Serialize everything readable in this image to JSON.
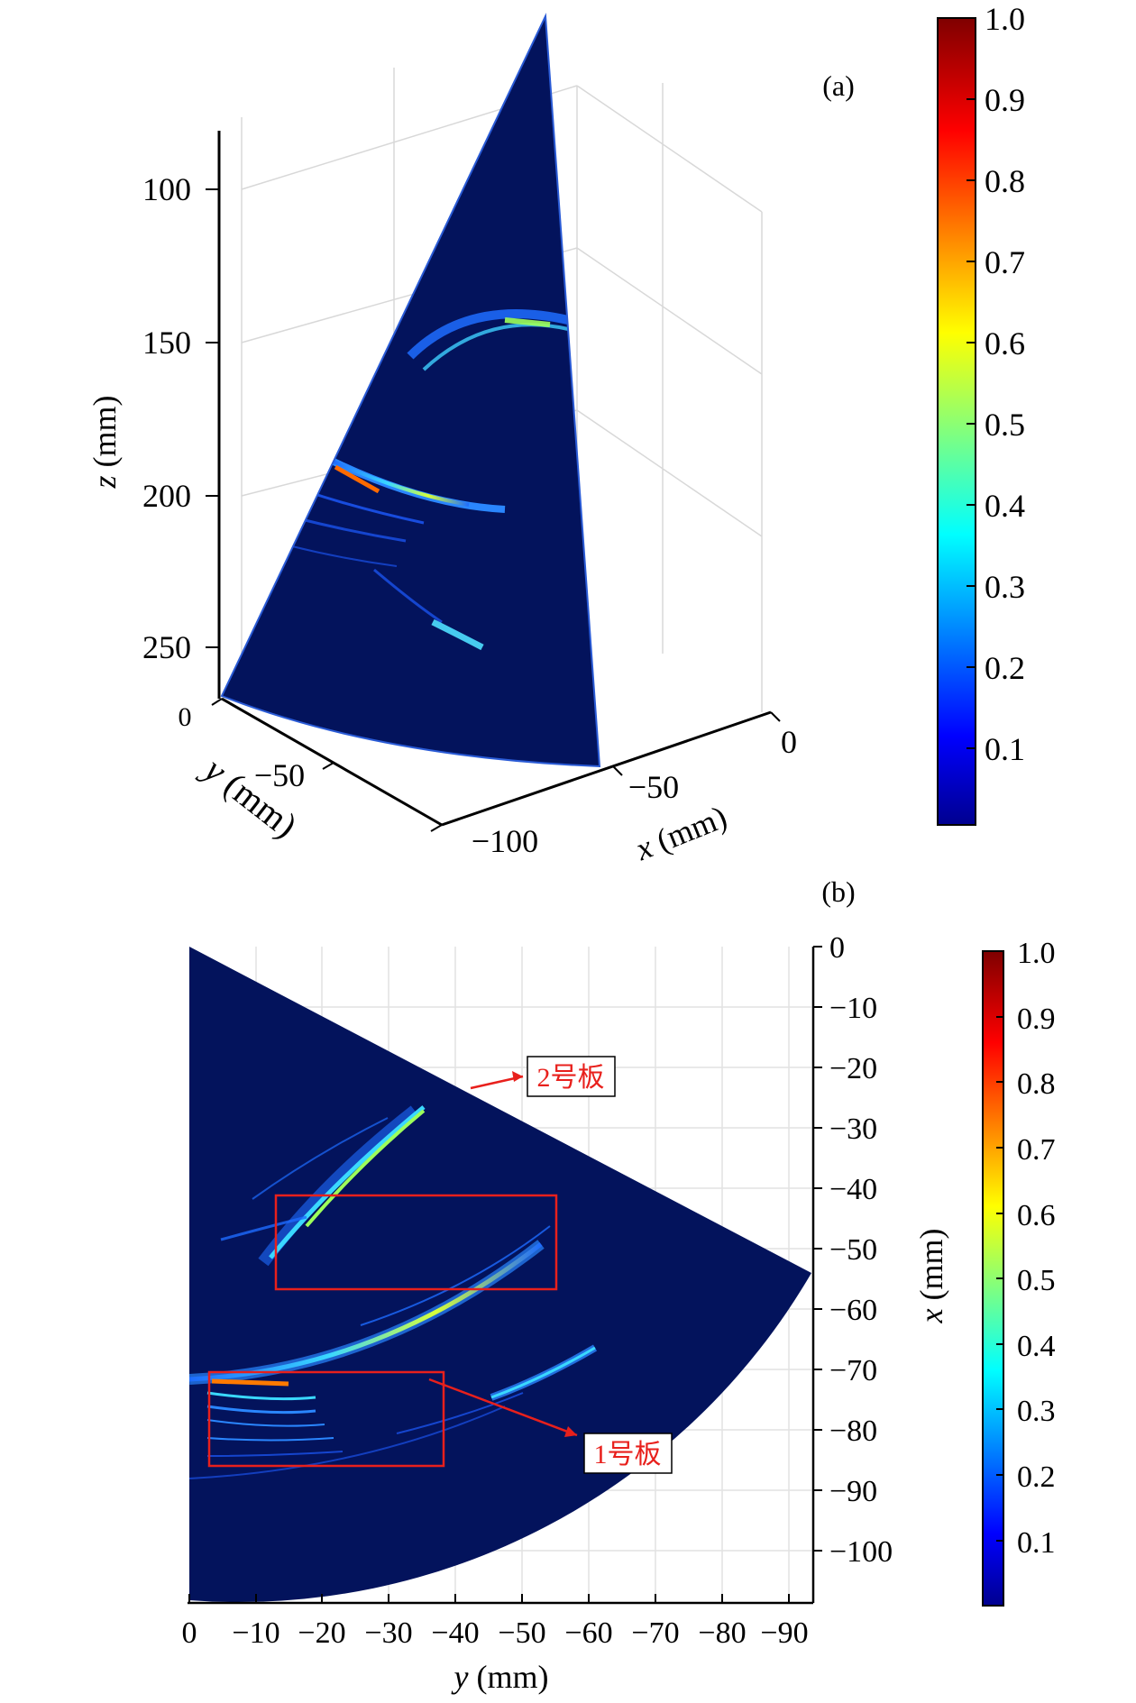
{
  "panel_a": {
    "label": "(a)",
    "z_axis": {
      "label_var": "z",
      "label_unit": " (mm)",
      "ticks": [
        "100",
        "150",
        "200",
        "250"
      ]
    },
    "y_axis": {
      "label_var": "y",
      "label_unit": " (mm)",
      "ticks": [
        "0",
        "−50",
        "−100"
      ]
    },
    "x_axis": {
      "label_var": "x",
      "label_unit": " (mm)",
      "ticks": [
        "0",
        "−50"
      ]
    },
    "colorbar_ticks": [
      "1.0",
      "0.9",
      "0.8",
      "0.7",
      "0.6",
      "0.5",
      "0.4",
      "0.3",
      "0.2",
      "0.1"
    ]
  },
  "panel_b": {
    "label": "(b)",
    "x_axis": {
      "label_var": "y",
      "label_unit": " (mm)",
      "ticks": [
        "0",
        "−10",
        "−20",
        "−30",
        "−40",
        "−50",
        "−60",
        "−70",
        "−80",
        "−90"
      ]
    },
    "y_axis": {
      "label_var": "x",
      "label_unit": " (mm)",
      "ticks": [
        "0",
        "−10",
        "−20",
        "−30",
        "−40",
        "−50",
        "−60",
        "−70",
        "−80",
        "−90",
        "−100"
      ]
    },
    "colorbar_ticks": [
      "1.0",
      "0.9",
      "0.8",
      "0.7",
      "0.6",
      "0.5",
      "0.4",
      "0.3",
      "0.2",
      "0.1"
    ],
    "annotations": {
      "plate2": "2号板",
      "plate1": "1号板"
    }
  },
  "colors": {
    "background": "#03135c",
    "annotation": "#e8201c",
    "axis": "#000000"
  },
  "chart_data": [
    {
      "type": "heatmap",
      "panel": "a",
      "description_type": "3D sector ultrasound image",
      "zlim": [
        80,
        260
      ],
      "zlabel": "z (mm)",
      "ylabel": "y (mm)",
      "xlabel": "x (mm)",
      "colorbar_range": [
        0,
        1.0
      ],
      "colormap": "jet"
    },
    {
      "type": "heatmap",
      "panel": "b",
      "xlim": [
        0,
        -94
      ],
      "ylim": [
        0,
        -109
      ],
      "xlabel": "y (mm)",
      "ylabel": "x (mm)",
      "colorbar_range": [
        0,
        1.0
      ],
      "colormap": "jet",
      "grid": true
    }
  ]
}
